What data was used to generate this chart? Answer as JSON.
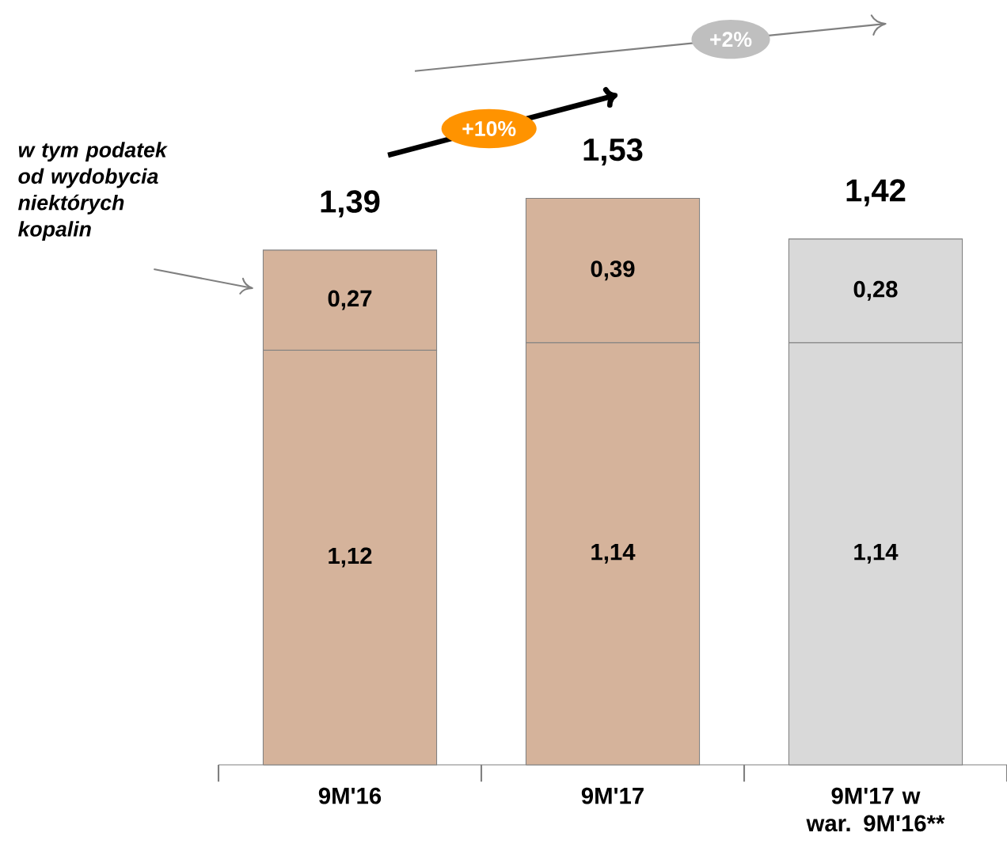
{
  "chart_data": {
    "type": "bar",
    "stacked": true,
    "categories": [
      "9M'16",
      "9M'17",
      "9M'17 w war. 9M'16**"
    ],
    "series": [
      {
        "colors": [
          "#d5b39b",
          "#d5b39b",
          "#d9d9d9"
        ],
        "values": [
          1.12,
          1.14,
          1.14
        ],
        "value_labels": [
          "1,12",
          "1,14",
          "1,14"
        ]
      },
      {
        "colors": [
          "#d5b39b",
          "#d5b39b",
          "#d9d9d9"
        ],
        "values": [
          0.27,
          0.39,
          0.28
        ],
        "value_labels": [
          "0,27",
          "0,39",
          "0,28"
        ]
      }
    ],
    "totals": [
      "1,39",
      "1,53",
      "1,42"
    ],
    "annotations": [
      "w tym podatek od wydobycia niektórych kopalin",
      "+10%",
      "+2%"
    ]
  }
}
